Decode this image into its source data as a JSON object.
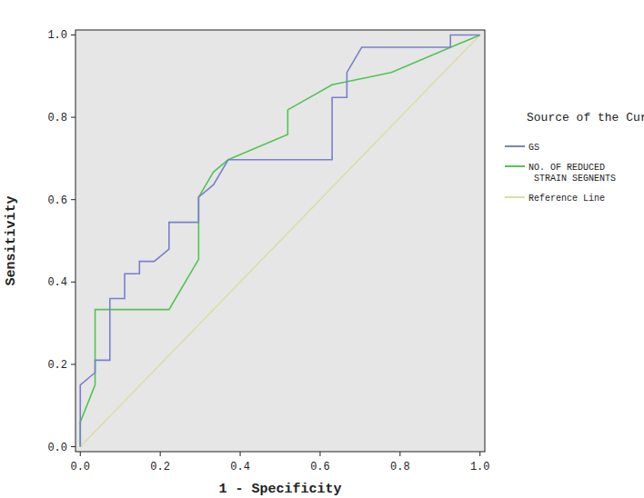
{
  "chart_data": {
    "type": "line",
    "x_label": "1 - Specificity",
    "y_label": "Sensitivity",
    "legend_title": "Source of the Curve",
    "legend": "right",
    "grid": false,
    "xlim": [
      -0.012,
      1.012
    ],
    "ylim": [
      -0.012,
      1.012
    ],
    "xticks": [
      {
        "value": 0,
        "label": "0.0"
      },
      {
        "value": 0.2,
        "label": "0.2"
      },
      {
        "value": 0.4,
        "label": "0.4"
      },
      {
        "value": 0.6,
        "label": "0.6"
      },
      {
        "value": 0.8,
        "label": "0.8"
      },
      {
        "value": 1,
        "label": "1.0"
      }
    ],
    "yticks": [
      {
        "value": 0,
        "label": "0.0"
      },
      {
        "value": 0.2,
        "label": "0.2"
      },
      {
        "value": 0.4,
        "label": "0.4"
      },
      {
        "value": 0.6,
        "label": "0.6"
      },
      {
        "value": 0.8,
        "label": "0.8"
      },
      {
        "value": 1,
        "label": "1.0"
      }
    ],
    "series": [
      {
        "name": "GS",
        "color": "#7880cc",
        "x": [
          0,
          0,
          0.037,
          0.037,
          0.074,
          0.074,
          0.111,
          0.111,
          0.148,
          0.148,
          0.185,
          0.222,
          0.222,
          0.296,
          0.296,
          0.333,
          0.37,
          0.63,
          0.63,
          0.667,
          0.667,
          0.704,
          0.926,
          0.926,
          1
        ],
        "values": [
          0,
          0.15,
          0.18,
          0.21,
          0.21,
          0.36,
          0.36,
          0.42,
          0.42,
          0.45,
          0.45,
          0.48,
          0.545,
          0.545,
          0.606,
          0.636,
          0.697,
          0.697,
          0.848,
          0.848,
          0.909,
          0.97,
          0.97,
          1,
          1
        ]
      },
      {
        "name": "NO. OF REDUCED STRAIN SEGNENTS",
        "color": "#52c452",
        "x": [
          0,
          0,
          0.037,
          0.037,
          0.222,
          0.296,
          0.296,
          0.333,
          0.37,
          0.519,
          0.519,
          0.63,
          0.778,
          1
        ],
        "values": [
          0,
          0.06,
          0.15,
          0.333,
          0.333,
          0.455,
          0.606,
          0.667,
          0.697,
          0.758,
          0.818,
          0.879,
          0.909,
          1
        ]
      },
      {
        "name": "Reference Line",
        "color": "#dcdcaa",
        "x": [
          0,
          1
        ],
        "values": [
          0,
          1
        ]
      }
    ]
  }
}
